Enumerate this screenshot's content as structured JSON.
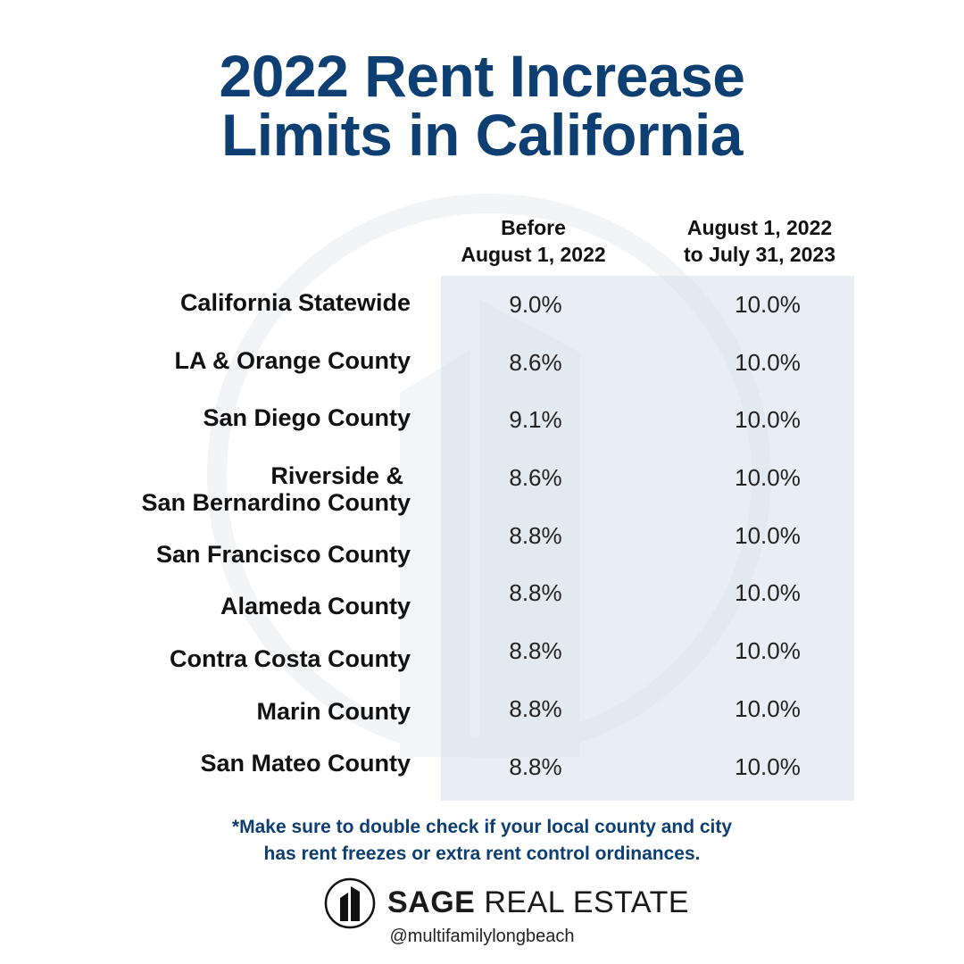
{
  "title": {
    "line1": "2022 Rent Increase",
    "line2": "Limits in California"
  },
  "columns": {
    "before": {
      "line1": "Before",
      "line2": "August 1, 2022"
    },
    "after": {
      "line1": "August 1, 2022",
      "line2": "to July 31, 2023"
    }
  },
  "rows": [
    {
      "label": "California Statewide",
      "before": "9.0%",
      "after": "10.0%"
    },
    {
      "label": "LA & Orange County",
      "before": "8.6%",
      "after": "10.0%"
    },
    {
      "label": "San Diego County",
      "before": "9.1%",
      "after": "10.0%"
    },
    {
      "label_line1": "Riverside &",
      "label_line2": "San Bernardino County",
      "before": "8.6%",
      "after": "10.0%"
    },
    {
      "label": "San Francisco County",
      "before": "8.8%",
      "after": "10.0%"
    },
    {
      "label": "Alameda County",
      "before": "8.8%",
      "after": "10.0%"
    },
    {
      "label": "Contra Costa County",
      "before": "8.8%",
      "after": "10.0%"
    },
    {
      "label": "Marin County",
      "before": "8.8%",
      "after": "10.0%"
    },
    {
      "label": "San Mateo County",
      "before": "8.8%",
      "after": "10.0%"
    }
  ],
  "note": {
    "line1": "*Make sure to double check if your local county and city",
    "line2": "has rent freezes or extra rent control ordinances."
  },
  "brand": {
    "name_bold": "SAGE",
    "name_regular": "REAL ESTATE",
    "handle": "@multifamilylongbeach"
  },
  "colors": {
    "title": "#0d3f73",
    "table_bg": "#e7edf3",
    "text": "#111111"
  },
  "icons": [
    "building-logo-icon",
    "watermark-building-icon"
  ]
}
